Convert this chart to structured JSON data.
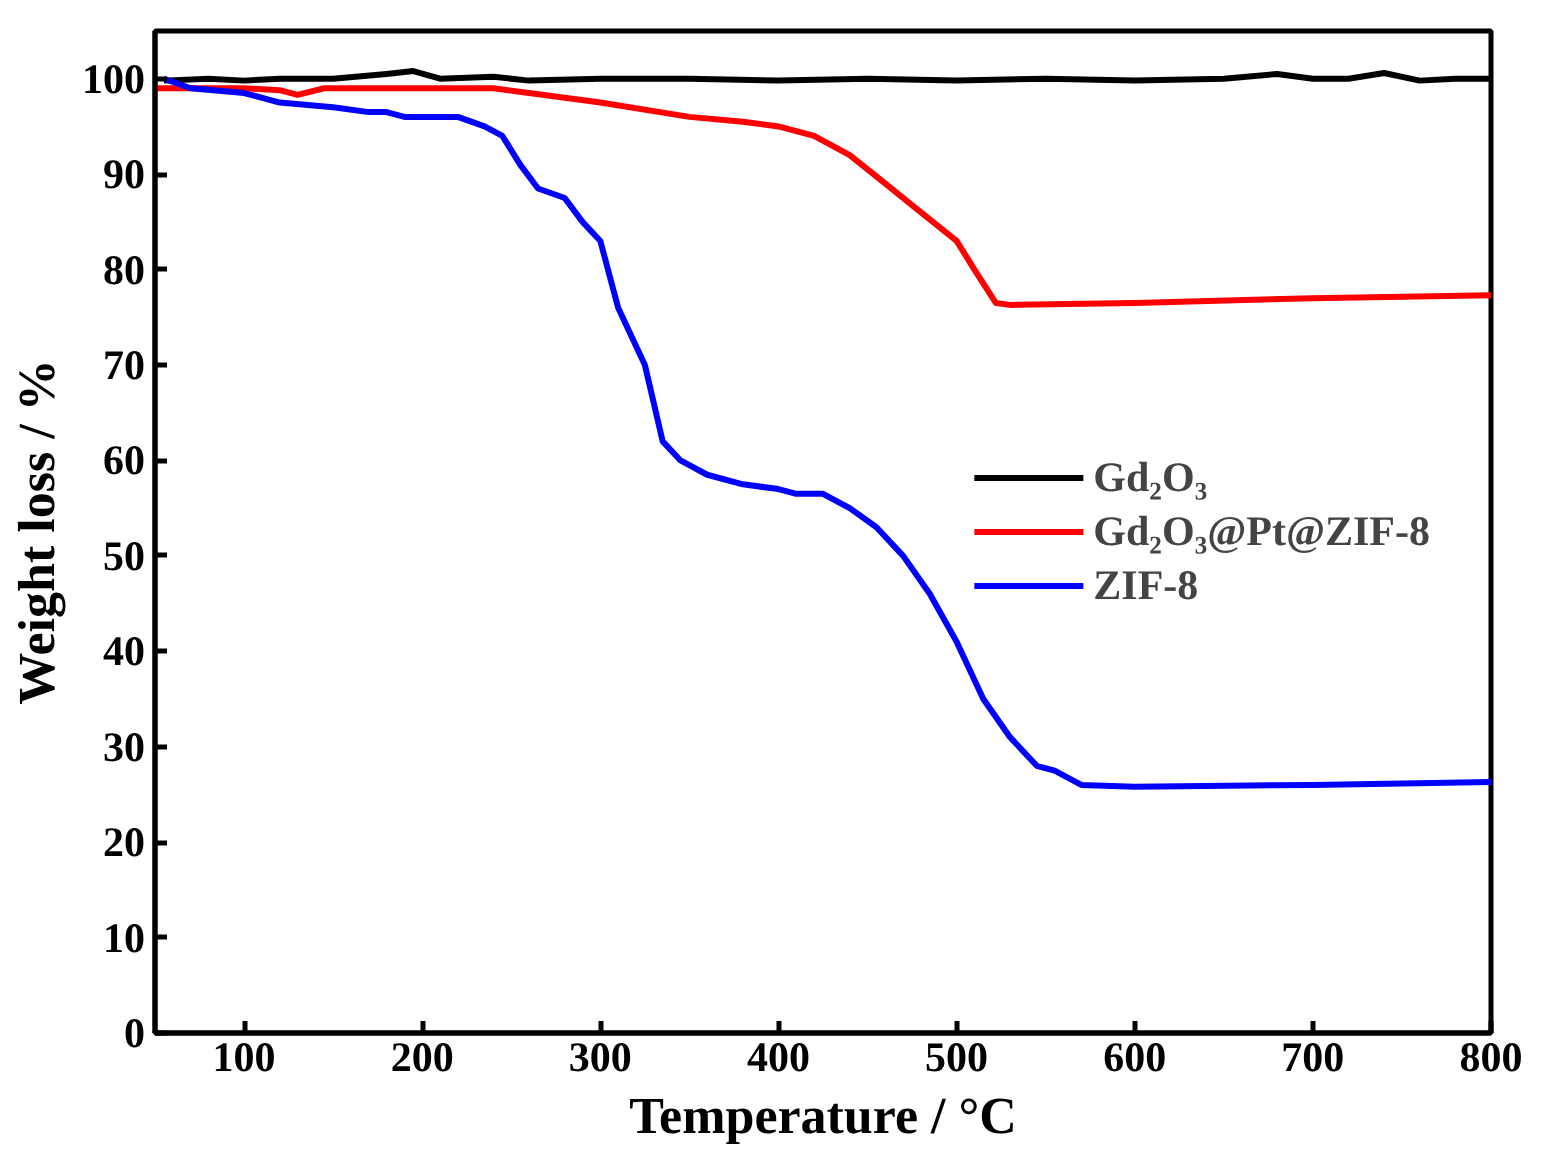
{
  "chart_data": {
    "type": "line",
    "xlabel": "Temperature / °C",
    "ylabel": "Weight loss / %",
    "xlim": [
      50,
      800
    ],
    "ylim": [
      0,
      105
    ],
    "xticks": [
      100,
      200,
      300,
      400,
      500,
      600,
      700,
      800
    ],
    "yticks": [
      0,
      10,
      20,
      30,
      40,
      50,
      60,
      70,
      80,
      90,
      100
    ],
    "grid": false,
    "legend": "right",
    "marker": "none",
    "line_style": "solid",
    "series": [
      {
        "name": "Gd₂O₃",
        "color": "#000000",
        "x": [
          55,
          80,
          100,
          120,
          150,
          180,
          195,
          210,
          240,
          260,
          300,
          350,
          400,
          450,
          500,
          550,
          600,
          650,
          680,
          700,
          720,
          740,
          760,
          780,
          800
        ],
        "values": [
          99.8,
          100,
          99.8,
          100,
          100,
          100.5,
          100.8,
          100,
          100.2,
          99.8,
          100,
          100,
          99.8,
          100,
          99.8,
          100,
          99.8,
          100,
          100.5,
          100,
          100,
          100.6,
          99.8,
          100,
          100
        ]
      },
      {
        "name": "Gd₂O₃@Pt@ZIF-8",
        "color": "#ff0000",
        "x": [
          50,
          100,
          120,
          130,
          145,
          200,
          240,
          260,
          300,
          350,
          380,
          400,
          420,
          440,
          460,
          480,
          500,
          510,
          522,
          530,
          600,
          700,
          800
        ],
        "values": [
          99,
          99,
          98.8,
          98.3,
          99,
          99,
          99,
          98.5,
          97.5,
          96,
          95.5,
          95,
          94,
          92,
          89,
          86,
          83,
          80,
          76.5,
          76.3,
          76.5,
          77,
          77.3
        ]
      },
      {
        "name": "ZIF-8",
        "color": "#0000ff",
        "x": [
          55,
          70,
          100,
          120,
          150,
          170,
          180,
          190,
          220,
          235,
          245,
          255,
          265,
          280,
          290,
          300,
          310,
          325,
          335,
          345,
          360,
          380,
          400,
          410,
          425,
          440,
          455,
          470,
          485,
          500,
          515,
          530,
          545,
          555,
          570,
          600,
          700,
          800
        ],
        "values": [
          100,
          99,
          98.5,
          97.5,
          97,
          96.5,
          96.5,
          96,
          96,
          95,
          94,
          91,
          88.5,
          87.5,
          85,
          83,
          76,
          70,
          62,
          60,
          58.5,
          57.5,
          57,
          56.5,
          56.5,
          55,
          53,
          50,
          46,
          41,
          35,
          31,
          28,
          27.5,
          26,
          25.8,
          26,
          26.3
        ]
      }
    ]
  }
}
